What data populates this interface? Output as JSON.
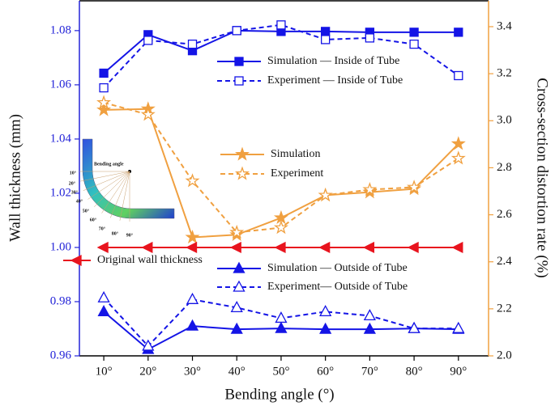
{
  "chart_data": {
    "type": "line",
    "xlabel": "Bending angle (°)",
    "ylabel": "Wall thickness (mm)",
    "y2label": "Cross-section distortion rate (%)",
    "xlim": [
      4.5,
      96.8
    ],
    "xticks": [
      {
        "value": 10,
        "label": "10°"
      },
      {
        "value": 20,
        "label": "20°"
      },
      {
        "value": 30,
        "label": "30°"
      },
      {
        "value": 40,
        "label": "40°"
      },
      {
        "value": 50,
        "label": "50°"
      },
      {
        "value": 60,
        "label": "60°"
      },
      {
        "value": 70,
        "label": "70°"
      },
      {
        "value": 80,
        "label": "80°"
      },
      {
        "value": 90,
        "label": "90°"
      }
    ],
    "ylim": [
      0.96,
      1.091
    ],
    "yticks": [
      0.96,
      0.98,
      {
        "value": 1.0,
        "label": "1.00"
      },
      1.02,
      1.04,
      1.06,
      1.08
    ],
    "y2lim": [
      2.0,
      3.51
    ],
    "y2ticks": [
      {
        "value": 2.0,
        "label": "2.0"
      },
      2.2,
      2.4,
      2.6,
      2.8,
      {
        "value": 3.0,
        "label": "3.0"
      },
      3.2,
      3.4
    ],
    "left_axis_color": "#2323d8",
    "right_axis_color": "#f0a040",
    "x": [
      10,
      20,
      30,
      40,
      50,
      60,
      70,
      80,
      90
    ],
    "series": [
      {
        "name": "Simulation — Inside of Tube",
        "color": "#1414e6",
        "marker": "square",
        "filled": true,
        "dashed": false,
        "values": [
          1.0643,
          1.0785,
          1.0726,
          1.08,
          1.0797,
          1.0797,
          1.0794,
          1.0794,
          1.0794
        ]
      },
      {
        "name": "Experiment — Inside of Tube",
        "color": "#1414e6",
        "marker": "square",
        "filled": false,
        "dashed": true,
        "values": [
          1.0589,
          1.0764,
          1.075,
          1.08,
          1.0821,
          1.0767,
          1.0773,
          1.075,
          1.0634
        ]
      },
      {
        "name": "Simulation",
        "color": "#f0a040",
        "marker": "star",
        "filled": true,
        "dashed": false,
        "axis": "y2",
        "values": [
          3.046,
          3.05,
          2.504,
          2.515,
          2.587,
          2.683,
          2.696,
          2.71,
          2.902
        ]
      },
      {
        "name": "Experiment",
        "color": "#f0a040",
        "marker": "star",
        "filled": false,
        "dashed": true,
        "axis": "y2",
        "values": [
          3.077,
          3.026,
          2.744,
          2.525,
          2.545,
          2.683,
          2.707,
          2.717,
          2.84
        ]
      },
      {
        "name": "Original wall thickness",
        "color": "#e8141e",
        "marker": "left-triangle",
        "filled": true,
        "dashed": false,
        "values": [
          1.0,
          1.0,
          1.0,
          1.0,
          1.0,
          1.0,
          1.0,
          1.0,
          1.0
        ]
      },
      {
        "name": "Simulation — Outside of Tube",
        "color": "#1414e6",
        "marker": "triangle",
        "filled": true,
        "dashed": false,
        "values": [
          0.9763,
          0.9624,
          0.971,
          0.9698,
          0.9701,
          0.9698,
          0.9698,
          0.9701,
          0.9698
        ]
      },
      {
        "name": "Experiment— Outside of Tube",
        "color": "#1414e6",
        "marker": "triangle",
        "filled": false,
        "dashed": true,
        "values": [
          0.9814,
          0.9636,
          0.9808,
          0.9778,
          0.9739,
          0.9763,
          0.9748,
          0.9701,
          0.9701
        ]
      }
    ],
    "inset": {
      "label": "Bending angle",
      "angles": [
        "10°",
        "20°",
        "30°",
        "40°",
        "50°",
        "60°",
        "70°",
        "80°",
        "90°"
      ]
    }
  }
}
